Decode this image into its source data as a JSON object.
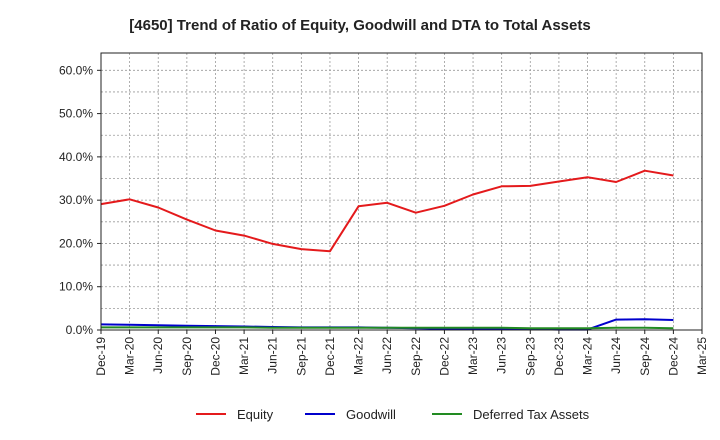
{
  "chart_data": {
    "type": "line",
    "title": "[4650]  Trend of Ratio of Equity, Goodwill and DTA to Total Assets",
    "xlabel": "",
    "ylabel": "",
    "ylim": [
      0,
      0.64
    ],
    "y_ticks": [
      "0.0%",
      "10.0%",
      "20.0%",
      "30.0%",
      "40.0%",
      "50.0%",
      "60.0%"
    ],
    "categories": [
      "Dec-19",
      "Mar-20",
      "Jun-20",
      "Sep-20",
      "Dec-20",
      "Mar-21",
      "Jun-21",
      "Sep-21",
      "Dec-21",
      "Mar-22",
      "Jun-22",
      "Sep-22",
      "Dec-22",
      "Mar-23",
      "Jun-23",
      "Sep-23",
      "Dec-23",
      "Mar-24",
      "Jun-24",
      "Sep-24",
      "Dec-24",
      "Mar-25"
    ],
    "grid": true,
    "legend_position": "bottom",
    "series": [
      {
        "name": "Equity",
        "color": "#e41a1c",
        "values": [
          0.291,
          0.302,
          0.283,
          0.255,
          0.23,
          0.218,
          0.199,
          0.187,
          0.182,
          0.286,
          0.294,
          0.271,
          0.287,
          0.313,
          0.332,
          0.333,
          0.343,
          0.353,
          0.342,
          0.368,
          0.357,
          null
        ]
      },
      {
        "name": "Goodwill",
        "color": "#0000cc",
        "values": [
          0.013,
          0.012,
          0.011,
          0.01,
          0.009,
          0.008,
          0.007,
          0.006,
          0.006,
          0.006,
          0.005,
          0.004,
          0.003,
          0.003,
          0.003,
          0.002,
          0.001,
          0.001,
          0.024,
          0.025,
          0.023,
          null
        ]
      },
      {
        "name": "Deferred Tax Assets",
        "color": "#228b22",
        "values": [
          0.006,
          0.006,
          0.006,
          0.006,
          0.006,
          0.006,
          0.005,
          0.005,
          0.005,
          0.005,
          0.005,
          0.005,
          0.005,
          0.005,
          0.005,
          0.004,
          0.004,
          0.004,
          0.005,
          0.005,
          0.004,
          null
        ]
      }
    ]
  }
}
